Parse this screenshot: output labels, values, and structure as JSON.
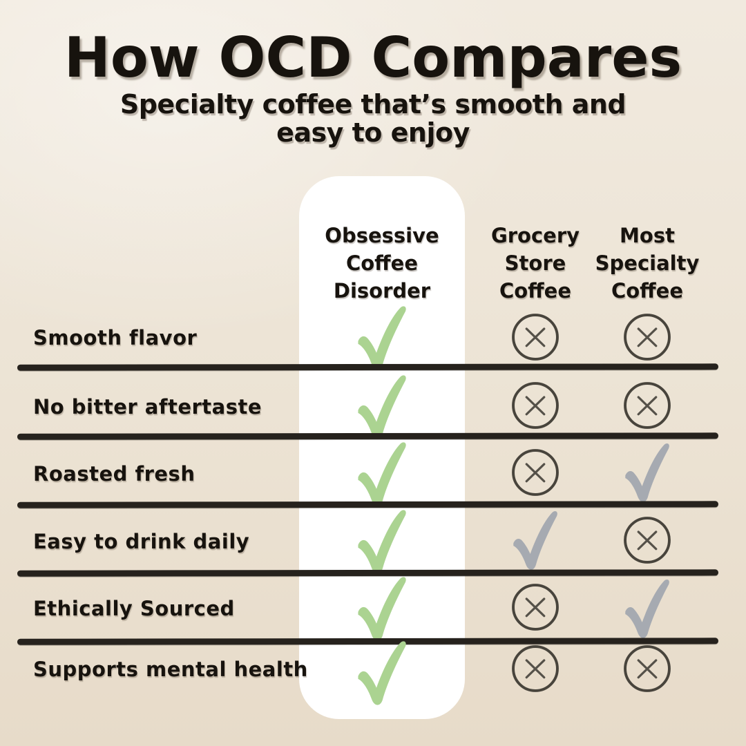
{
  "header": {
    "title": "How OCD Compares",
    "subtitle_lines": [
      "Specialty coffee that’s smooth and",
      "easy to enjoy"
    ]
  },
  "chart_data": {
    "type": "table",
    "title": "How OCD Compares",
    "subtitle": "Specialty coffee that’s smooth and easy to enjoy",
    "columns": [
      {
        "name": "Obsessive Coffee Disorder",
        "label_lines": [
          "Obsessive",
          "Coffee",
          "Disorder"
        ],
        "highlighted": true
      },
      {
        "name": "Grocery Store Coffee",
        "label_lines": [
          "Grocery",
          "Store",
          "Coffee"
        ],
        "highlighted": false
      },
      {
        "name": "Most Specialty Coffee",
        "label_lines": [
          "Most",
          "Specialty",
          "Coffee"
        ],
        "highlighted": false
      }
    ],
    "rows": [
      {
        "feature": "Smooth flavor",
        "values": [
          "check",
          "x",
          "x"
        ]
      },
      {
        "feature": "No bitter aftertaste",
        "values": [
          "check",
          "x",
          "x"
        ]
      },
      {
        "feature": "Roasted fresh",
        "values": [
          "check",
          "x",
          "check"
        ]
      },
      {
        "feature": "Easy to drink daily",
        "values": [
          "check",
          "check",
          "x"
        ]
      },
      {
        "feature": "Ethically Sourced",
        "values": [
          "check",
          "x",
          "check"
        ]
      },
      {
        "feature": "Supports mental health",
        "values": [
          "check",
          "x",
          "x"
        ]
      }
    ],
    "mark_legend": {
      "check": "yes",
      "x": "no"
    }
  },
  "colors": {
    "background-top": "#f1eadf",
    "background-bottom": "#e7dbc9",
    "panel": "#ffffff",
    "text": "#17130e",
    "divider": "#26221d",
    "check-highlight": "#abd391",
    "check-muted": "#a6aab1",
    "x-ring": "#48443c",
    "x-stroke": "#555149"
  }
}
